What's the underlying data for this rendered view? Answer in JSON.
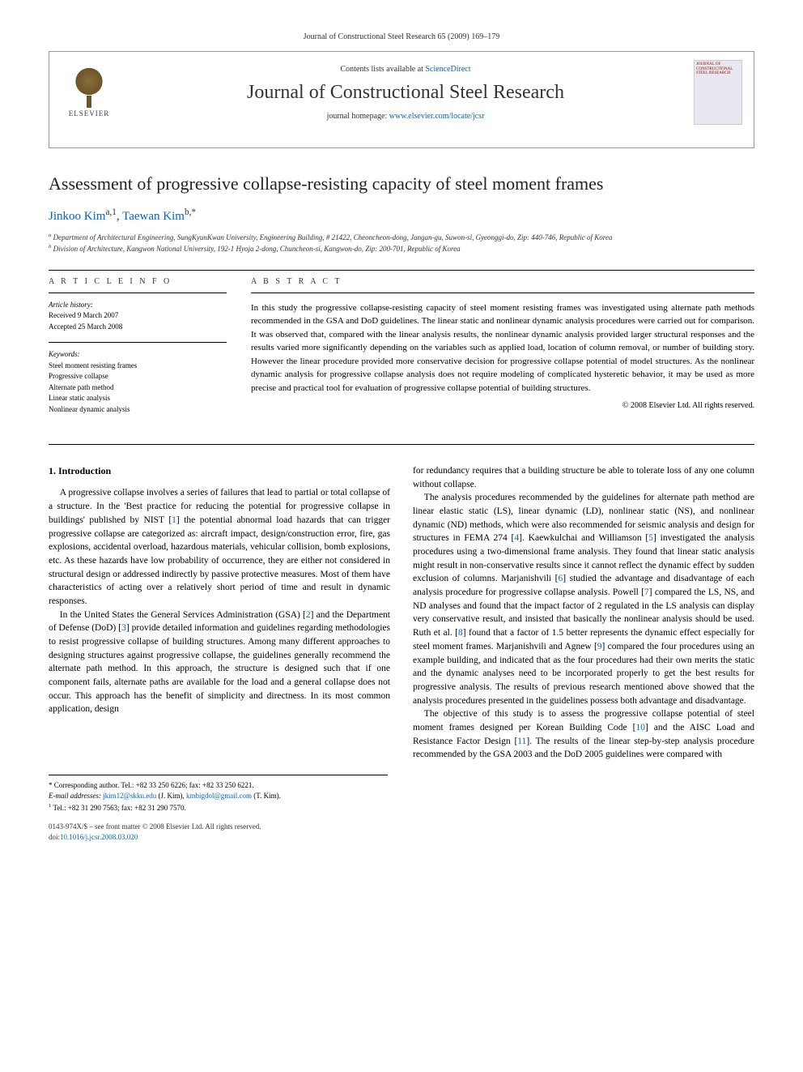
{
  "citation": "Journal of Constructional Steel Research 65 (2009) 169–179",
  "header": {
    "publisher": "ELSEVIER",
    "contents_prefix": "Contents lists available at ",
    "contents_link": "ScienceDirect",
    "journal_name": "Journal of Constructional Steel Research",
    "homepage_prefix": "journal homepage: ",
    "homepage_url": "www.elsevier.com/locate/jcsr",
    "cover_text": "JOURNAL OF CONSTRUCTIONAL STEEL RESEARCH"
  },
  "title": "Assessment of progressive collapse-resisting capacity of steel moment frames",
  "authors": [
    {
      "name": "Jinkoo Kim",
      "marks": "a,1"
    },
    {
      "name": "Taewan Kim",
      "marks": "b,*"
    }
  ],
  "affiliations": [
    {
      "mark": "a",
      "text": "Department of Architectural Engineering, SungKyunKwan University, Engineering Building, # 21422, Cheoncheon-dong, Jangan-gu, Suwon-si, Gyeonggi-do, Zip: 440-746, Republic of Korea"
    },
    {
      "mark": "b",
      "text": "Division of Architecture, Kangwon National University, 192-1 Hyoja 2-dong, Chuncheon-si, Kangwon-do, Zip: 200-701, Republic of Korea"
    }
  ],
  "article_info": {
    "heading": "A R T I C L E   I N F O",
    "history_label": "Article history:",
    "received": "Received 9 March 2007",
    "accepted": "Accepted 25 March 2008",
    "keywords_label": "Keywords:",
    "keywords": [
      "Steel moment resisting frames",
      "Progressive collapse",
      "Alternate path method",
      "Linear static analysis",
      "Nonlinear dynamic analysis"
    ]
  },
  "abstract": {
    "heading": "A B S T R A C T",
    "text": "In this study the progressive collapse-resisting capacity of steel moment resisting frames was investigated using alternate path methods recommended in the GSA and DoD guidelines. The linear static and nonlinear dynamic analysis procedures were carried out for comparison. It was observed that, compared with the linear analysis results, the nonlinear dynamic analysis provided larger structural responses and the results varied more significantly depending on the variables such as applied load, location of column removal, or number of building story. However the linear procedure provided more conservative decision for progressive collapse potential of model structures. As the nonlinear dynamic analysis for progressive collapse analysis does not require modeling of complicated hysteretic behavior, it may be used as more precise and practical tool for evaluation of progressive collapse potential of building structures.",
    "copyright": "© 2008 Elsevier Ltd. All rights reserved."
  },
  "body": {
    "section_number": "1.",
    "section_title": "Introduction",
    "col1_p1": "A progressive collapse involves a series of failures that lead to partial or total collapse of a structure. In the 'Best practice for reducing the potential for progressive collapse in buildings' published by NIST [1] the potential abnormal load hazards that can trigger progressive collapse are categorized as: aircraft impact, design/construction error, fire, gas explosions, accidental overload, hazardous materials, vehicular collision, bomb explosions, etc. As these hazards have low probability of occurrence, they are either not considered in structural design or addressed indirectly by passive protective measures. Most of them have characteristics of acting over a relatively short period of time and result in dynamic responses.",
    "col1_p2": "In the United States the General Services Administration (GSA) [2] and the Department of Defense (DoD) [3] provide detailed information and guidelines regarding methodologies to resist progressive collapse of building structures. Among many different approaches to designing structures against progressive collapse, the guidelines generally recommend the alternate path method. In this approach, the structure is designed such that if one component fails, alternate paths are available for the load and a general collapse does not occur. This approach has the benefit of simplicity and directness. In its most common application, design",
    "col2_p1": "for redundancy requires that a building structure be able to tolerate loss of any one column without collapse.",
    "col2_p2": "The analysis procedures recommended by the guidelines for alternate path method are linear elastic static (LS), linear dynamic (LD), nonlinear static (NS), and nonlinear dynamic (ND) methods, which were also recommended for seismic analysis and design for structures in FEMA 274 [4]. Kaewkulchai and Williamson [5] investigated the analysis procedures using a two-dimensional frame analysis. They found that linear static analysis might result in non-conservative results since it cannot reflect the dynamic effect by sudden exclusion of columns. Marjanishvili [6] studied the advantage and disadvantage of each analysis procedure for progressive collapse analysis. Powell [7] compared the LS, NS, and ND analyses and found that the impact factor of 2 regulated in the LS analysis can display very conservative result, and insisted that basically the nonlinear analysis should be used. Ruth et al. [8] found that a factor of 1.5 better represents the dynamic effect especially for steel moment frames. Marjanishvili and Agnew [9] compared the four procedures using an example building, and indicated that as the four procedures had their own merits the static and the dynamic analyses need to be incorporated properly to get the best results for progressive analysis. The results of previous research mentioned above showed that the analysis procedures presented in the guidelines possess both advantage and disadvantage.",
    "col2_p3": "The objective of this study is to assess the progressive collapse potential of steel moment frames designed per Korean Building Code [10] and the AISC Load and Resistance Factor Design [11]. The results of the linear step-by-step analysis procedure recommended by the GSA 2003 and the DoD 2005 guidelines were compared with"
  },
  "footnotes": {
    "corresponding": "Corresponding author. Tel.: +82 33 250 6226; fax: +82 33 250 6221.",
    "email_label": "E-mail addresses:",
    "email1": "jkim12@skku.edu",
    "email1_name": "(J. Kim),",
    "email2": "kmbigdol@gmail.com",
    "email2_name": "(T. Kim).",
    "tel": "Tel.: +82 31 290 7563; fax: +82 31 290 7570."
  },
  "footer": {
    "issn": "0143-974X/$ – see front matter © 2008 Elsevier Ltd. All rights reserved.",
    "doi_label": "doi:",
    "doi": "10.1016/j.jcsr.2008.03.020"
  },
  "colors": {
    "link": "#0066cc",
    "text": "#000000",
    "rule": "#000000",
    "elsevier_orange": "#e9711c"
  }
}
